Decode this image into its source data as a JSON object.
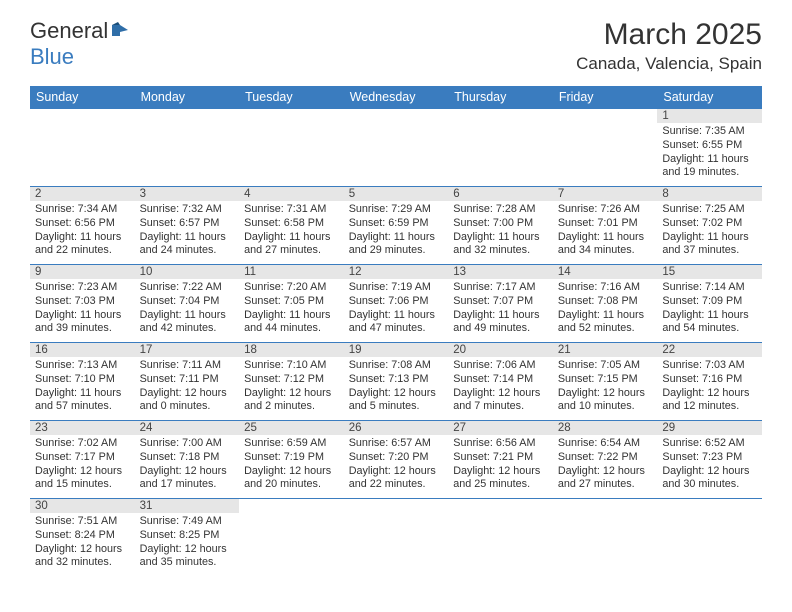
{
  "logo": {
    "text1": "General",
    "text2": "Blue",
    "flag_color": "#2f6ea8"
  },
  "title": "March 2025",
  "location": "Canada, Valencia, Spain",
  "day_headers": [
    "Sunday",
    "Monday",
    "Tuesday",
    "Wednesday",
    "Thursday",
    "Friday",
    "Saturday"
  ],
  "weeks": [
    [
      null,
      null,
      null,
      null,
      null,
      null,
      {
        "n": "1",
        "sr": "7:35 AM",
        "ss": "6:55 PM",
        "dlh": "11",
        "dlm": "19"
      }
    ],
    [
      {
        "n": "2",
        "sr": "7:34 AM",
        "ss": "6:56 PM",
        "dlh": "11",
        "dlm": "22"
      },
      {
        "n": "3",
        "sr": "7:32 AM",
        "ss": "6:57 PM",
        "dlh": "11",
        "dlm": "24"
      },
      {
        "n": "4",
        "sr": "7:31 AM",
        "ss": "6:58 PM",
        "dlh": "11",
        "dlm": "27"
      },
      {
        "n": "5",
        "sr": "7:29 AM",
        "ss": "6:59 PM",
        "dlh": "11",
        "dlm": "29"
      },
      {
        "n": "6",
        "sr": "7:28 AM",
        "ss": "7:00 PM",
        "dlh": "11",
        "dlm": "32"
      },
      {
        "n": "7",
        "sr": "7:26 AM",
        "ss": "7:01 PM",
        "dlh": "11",
        "dlm": "34"
      },
      {
        "n": "8",
        "sr": "7:25 AM",
        "ss": "7:02 PM",
        "dlh": "11",
        "dlm": "37"
      }
    ],
    [
      {
        "n": "9",
        "sr": "7:23 AM",
        "ss": "7:03 PM",
        "dlh": "11",
        "dlm": "39"
      },
      {
        "n": "10",
        "sr": "7:22 AM",
        "ss": "7:04 PM",
        "dlh": "11",
        "dlm": "42"
      },
      {
        "n": "11",
        "sr": "7:20 AM",
        "ss": "7:05 PM",
        "dlh": "11",
        "dlm": "44"
      },
      {
        "n": "12",
        "sr": "7:19 AM",
        "ss": "7:06 PM",
        "dlh": "11",
        "dlm": "47"
      },
      {
        "n": "13",
        "sr": "7:17 AM",
        "ss": "7:07 PM",
        "dlh": "11",
        "dlm": "49"
      },
      {
        "n": "14",
        "sr": "7:16 AM",
        "ss": "7:08 PM",
        "dlh": "11",
        "dlm": "52"
      },
      {
        "n": "15",
        "sr": "7:14 AM",
        "ss": "7:09 PM",
        "dlh": "11",
        "dlm": "54"
      }
    ],
    [
      {
        "n": "16",
        "sr": "7:13 AM",
        "ss": "7:10 PM",
        "dlh": "11",
        "dlm": "57"
      },
      {
        "n": "17",
        "sr": "7:11 AM",
        "ss": "7:11 PM",
        "dlh": "12",
        "dlm": "0"
      },
      {
        "n": "18",
        "sr": "7:10 AM",
        "ss": "7:12 PM",
        "dlh": "12",
        "dlm": "2"
      },
      {
        "n": "19",
        "sr": "7:08 AM",
        "ss": "7:13 PM",
        "dlh": "12",
        "dlm": "5"
      },
      {
        "n": "20",
        "sr": "7:06 AM",
        "ss": "7:14 PM",
        "dlh": "12",
        "dlm": "7"
      },
      {
        "n": "21",
        "sr": "7:05 AM",
        "ss": "7:15 PM",
        "dlh": "12",
        "dlm": "10"
      },
      {
        "n": "22",
        "sr": "7:03 AM",
        "ss": "7:16 PM",
        "dlh": "12",
        "dlm": "12"
      }
    ],
    [
      {
        "n": "23",
        "sr": "7:02 AM",
        "ss": "7:17 PM",
        "dlh": "12",
        "dlm": "15"
      },
      {
        "n": "24",
        "sr": "7:00 AM",
        "ss": "7:18 PM",
        "dlh": "12",
        "dlm": "17"
      },
      {
        "n": "25",
        "sr": "6:59 AM",
        "ss": "7:19 PM",
        "dlh": "12",
        "dlm": "20"
      },
      {
        "n": "26",
        "sr": "6:57 AM",
        "ss": "7:20 PM",
        "dlh": "12",
        "dlm": "22"
      },
      {
        "n": "27",
        "sr": "6:56 AM",
        "ss": "7:21 PM",
        "dlh": "12",
        "dlm": "25"
      },
      {
        "n": "28",
        "sr": "6:54 AM",
        "ss": "7:22 PM",
        "dlh": "12",
        "dlm": "27"
      },
      {
        "n": "29",
        "sr": "6:52 AM",
        "ss": "7:23 PM",
        "dlh": "12",
        "dlm": "30"
      }
    ],
    [
      {
        "n": "30",
        "sr": "7:51 AM",
        "ss": "8:24 PM",
        "dlh": "12",
        "dlm": "32"
      },
      {
        "n": "31",
        "sr": "7:49 AM",
        "ss": "8:25 PM",
        "dlh": "12",
        "dlm": "35"
      },
      null,
      null,
      null,
      null,
      null
    ]
  ],
  "labels": {
    "sunrise": "Sunrise:",
    "sunset": "Sunset:",
    "daylight_pre": "Daylight:",
    "hours_word": "hours",
    "and_word": "and",
    "minutes_word": "minutes."
  },
  "style": {
    "header_bg": "#3a7cbf",
    "header_fg": "#ffffff",
    "border_color": "#3a7cbf",
    "daynum_bg": "#e6e6e6",
    "text_color": "#333333",
    "body_font_size": 10.8,
    "header_font_size": 12.5,
    "title_font_size": 30,
    "location_font_size": 17
  }
}
